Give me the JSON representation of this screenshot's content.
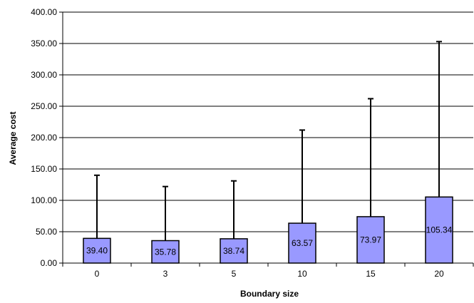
{
  "chart_data": {
    "type": "bar",
    "title": "",
    "xlabel": "Boundary size",
    "ylabel": "Average cost",
    "categories": [
      "0",
      "3",
      "5",
      "10",
      "15",
      "20"
    ],
    "values": [
      39.4,
      35.78,
      38.74,
      63.57,
      73.97,
      105.34
    ],
    "data_labels": [
      "39.40",
      "35.78",
      "38.74",
      "63.57",
      "73.97",
      "105.34"
    ],
    "error_upper": [
      140,
      122,
      131,
      212,
      262,
      353
    ],
    "ylim": [
      0,
      400
    ],
    "yticks": [
      "0.00",
      "50.00",
      "100.00",
      "150.00",
      "200.00",
      "250.00",
      "300.00",
      "350.00",
      "400.00"
    ],
    "ytick_values": [
      0,
      50,
      100,
      150,
      200,
      250,
      300,
      350,
      400
    ],
    "grid": "horizontal",
    "legend": "none",
    "colors": {
      "bar_fill": "#9999ff",
      "bar_stroke": "#000000",
      "error_bar": "#000000",
      "grid": "#000000"
    }
  }
}
